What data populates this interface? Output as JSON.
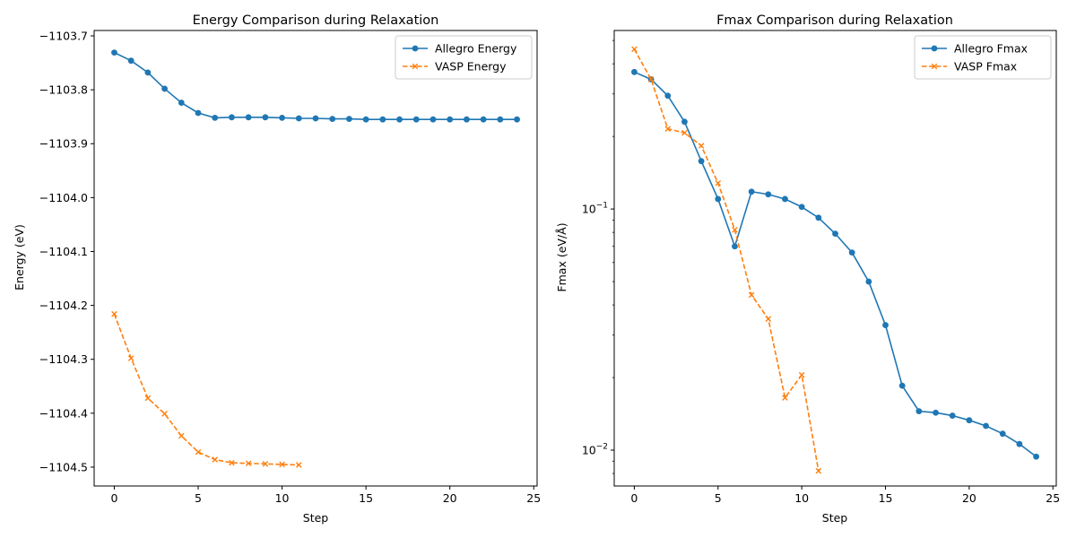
{
  "chart_data": [
    {
      "type": "line",
      "title": "Energy Comparison during Relaxation",
      "xlabel": "Step",
      "ylabel": "Energy (eV)",
      "xlim": [
        -1.2,
        25.2
      ],
      "ylim": [
        -1104.535,
        -1103.69
      ],
      "x_ticks": [
        0,
        5,
        10,
        15,
        20,
        25
      ],
      "x_tick_labels": [
        "0",
        "5",
        "10",
        "15",
        "20",
        "25"
      ],
      "y_ticks": [
        -1103.7,
        -1103.8,
        -1103.9,
        -1104.0,
        -1104.1,
        -1104.2,
        -1104.3,
        -1104.4,
        -1104.5
      ],
      "y_tick_labels": [
        "−1103.7",
        "−1103.8",
        "−1103.9",
        "−1104.0",
        "−1104.1",
        "−1104.2",
        "−1104.3",
        "−1104.4",
        "−1104.5"
      ],
      "legend_position": "upper right",
      "series": [
        {
          "name": "Allegro Energy",
          "color": "#1f77b4",
          "style": "solid",
          "marker": "circle",
          "x": [
            0,
            1,
            2,
            3,
            4,
            5,
            6,
            7,
            8,
            9,
            10,
            11,
            12,
            13,
            14,
            15,
            16,
            17,
            18,
            19,
            20,
            21,
            22,
            23,
            24
          ],
          "y": [
            -1103.731,
            -1103.746,
            -1103.768,
            -1103.798,
            -1103.824,
            -1103.843,
            -1103.852,
            -1103.851,
            -1103.851,
            -1103.851,
            -1103.852,
            -1103.853,
            -1103.853,
            -1103.854,
            -1103.854,
            -1103.855,
            -1103.855,
            -1103.855,
            -1103.855,
            -1103.855,
            -1103.855,
            -1103.855,
            -1103.855,
            -1103.855,
            -1103.855
          ]
        },
        {
          "name": "VASP Energy",
          "color": "#ff7f0e",
          "style": "dashed",
          "marker": "x",
          "x": [
            0,
            1,
            2,
            3,
            4,
            5,
            6,
            7,
            8,
            9,
            10,
            11
          ],
          "y": [
            -1104.216,
            -1104.298,
            -1104.372,
            -1104.401,
            -1104.442,
            -1104.472,
            -1104.486,
            -1104.492,
            -1104.493,
            -1104.494,
            -1104.495,
            -1104.496
          ]
        }
      ]
    },
    {
      "type": "line",
      "title": "Fmax Comparison during Relaxation",
      "xlabel": "Step",
      "ylabel": "Fmax (eV/Å)",
      "yscale": "log",
      "xlim": [
        -1.2,
        25.2
      ],
      "ylim": [
        0.0071,
        0.55
      ],
      "x_ticks": [
        0,
        5,
        10,
        15,
        20,
        25
      ],
      "x_tick_labels": [
        "0",
        "5",
        "10",
        "15",
        "20",
        "25"
      ],
      "y_major_ticks": [
        0.01,
        0.1
      ],
      "y_major_base": "10",
      "y_major_exponents": [
        "−2",
        "−1"
      ],
      "legend_position": "upper right",
      "series": [
        {
          "name": "Allegro Fmax",
          "color": "#1f77b4",
          "style": "solid",
          "marker": "circle",
          "x": [
            0,
            1,
            2,
            3,
            4,
            5,
            6,
            7,
            8,
            9,
            10,
            11,
            12,
            13,
            14,
            15,
            16,
            17,
            18,
            19,
            20,
            21,
            22,
            23,
            24
          ],
          "y": [
            0.37,
            0.345,
            0.295,
            0.23,
            0.158,
            0.11,
            0.07,
            0.118,
            0.115,
            0.11,
            0.102,
            0.092,
            0.079,
            0.066,
            0.05,
            0.033,
            0.0185,
            0.0145,
            0.0143,
            0.0139,
            0.0133,
            0.0126,
            0.0117,
            0.0106,
            0.0094
          ]
        },
        {
          "name": "VASP Fmax",
          "color": "#ff7f0e",
          "style": "dashed",
          "marker": "x",
          "x": [
            0,
            1,
            2,
            3,
            4,
            5,
            6,
            7,
            8,
            9,
            10,
            11
          ],
          "y": [
            0.46,
            0.345,
            0.215,
            0.207,
            0.183,
            0.128,
            0.082,
            0.044,
            0.035,
            0.0165,
            0.0205,
            0.0082
          ]
        }
      ]
    }
  ]
}
